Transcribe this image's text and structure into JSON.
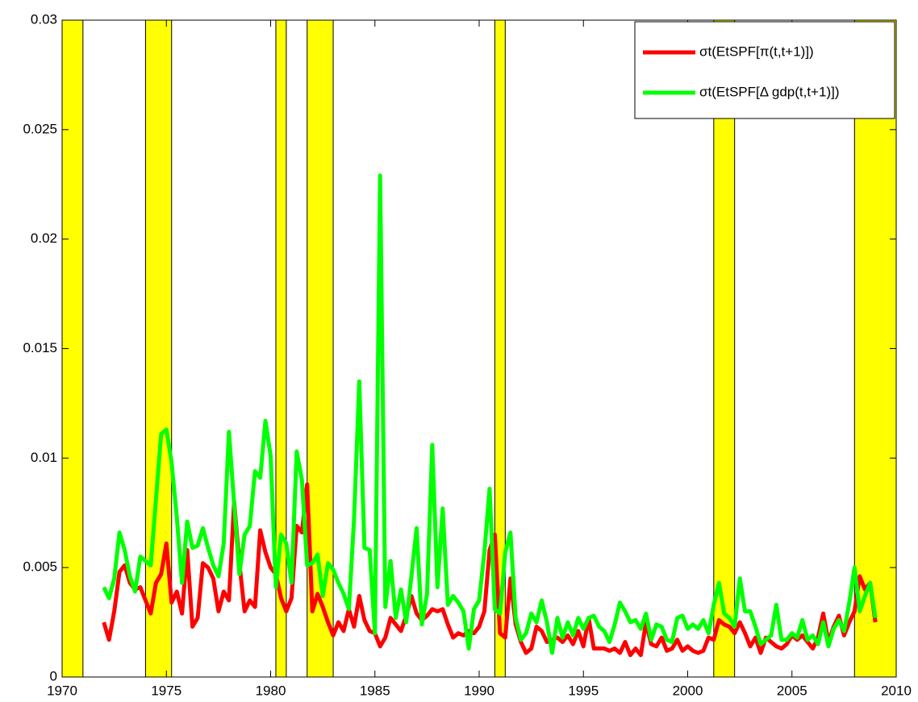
{
  "chart_data": {
    "type": "line",
    "xlim": [
      1970,
      2010
    ],
    "ylim": [
      0,
      0.03
    ],
    "xticks": [
      1970,
      1975,
      1980,
      1985,
      1990,
      1995,
      2000,
      2005,
      2010
    ],
    "yticks": [
      0,
      0.005,
      0.01,
      0.015,
      0.02,
      0.025,
      0.03
    ],
    "grid": false,
    "legend": "upper right",
    "shade_color": "#ffff00",
    "shaded_periods": [
      [
        1970,
        1971
      ],
      [
        1974,
        1975.25
      ],
      [
        1980.25,
        1980.75
      ],
      [
        1981.75,
        1983
      ],
      [
        1990.75,
        1991.25
      ],
      [
        2001.25,
        2002.25
      ],
      [
        2008,
        2010
      ]
    ],
    "x": [
      1972,
      1972.25,
      1972.5,
      1972.75,
      1973,
      1973.25,
      1973.5,
      1973.75,
      1974,
      1974.25,
      1974.5,
      1974.75,
      1975,
      1975.25,
      1975.5,
      1975.75,
      1976,
      1976.25,
      1976.5,
      1976.75,
      1977,
      1977.25,
      1977.5,
      1977.75,
      1978,
      1978.25,
      1978.5,
      1978.75,
      1979,
      1979.25,
      1979.5,
      1979.75,
      1980,
      1980.25,
      1980.5,
      1980.75,
      1981,
      1981.25,
      1981.5,
      1981.75,
      1982,
      1982.25,
      1982.5,
      1982.75,
      1983,
      1983.25,
      1983.5,
      1983.75,
      1984,
      1984.25,
      1984.5,
      1984.75,
      1985,
      1985.25,
      1985.5,
      1985.75,
      1986,
      1986.25,
      1986.5,
      1986.75,
      1987,
      1987.25,
      1987.5,
      1987.75,
      1988,
      1988.25,
      1988.5,
      1988.75,
      1989,
      1989.25,
      1989.5,
      1989.75,
      1990,
      1990.25,
      1990.5,
      1990.75,
      1991,
      1991.25,
      1991.5,
      1991.75,
      1992,
      1992.25,
      1992.5,
      1992.75,
      1993,
      1993.25,
      1993.5,
      1993.75,
      1994,
      1994.25,
      1994.5,
      1994.75,
      1995,
      1995.25,
      1995.5,
      1995.75,
      1996,
      1996.25,
      1996.5,
      1996.75,
      1997,
      1997.25,
      1997.5,
      1997.75,
      1998,
      1998.25,
      1998.5,
      1998.75,
      1999,
      1999.25,
      1999.5,
      1999.75,
      2000,
      2000.25,
      2000.5,
      2000.75,
      2001,
      2001.25,
      2001.5,
      2001.75,
      2002,
      2002.25,
      2002.5,
      2002.75,
      2003,
      2003.25,
      2003.5,
      2003.75,
      2004,
      2004.25,
      2004.5,
      2004.75,
      2005,
      2005.25,
      2005.5,
      2005.75,
      2006,
      2006.25,
      2006.5,
      2006.75,
      2007,
      2007.25,
      2007.5,
      2007.75,
      2008,
      2008.25,
      2008.5,
      2008.75,
      2009
    ],
    "series": [
      {
        "name": "σt(EtSPF[π(t,t+1)])",
        "color": "#ff0000",
        "values": [
          0.0025,
          0.0017,
          0.003,
          0.0048,
          0.0051,
          0.0043,
          0.004,
          0.0041,
          0.0035,
          0.0029,
          0.0043,
          0.0047,
          0.0061,
          0.0034,
          0.0039,
          0.0029,
          0.0058,
          0.0023,
          0.0027,
          0.0052,
          0.005,
          0.0045,
          0.003,
          0.0039,
          0.0035,
          0.008,
          0.0052,
          0.003,
          0.0035,
          0.0032,
          0.0067,
          0.0057,
          0.005,
          0.0047,
          0.0036,
          0.003,
          0.0036,
          0.0069,
          0.0066,
          0.0088,
          0.003,
          0.0038,
          0.0032,
          0.0025,
          0.0019,
          0.0025,
          0.0021,
          0.0031,
          0.0023,
          0.0037,
          0.0026,
          0.0021,
          0.002,
          0.0014,
          0.0018,
          0.0027,
          0.0024,
          0.0021,
          0.0028,
          0.0037,
          0.0029,
          0.0026,
          0.0028,
          0.0031,
          0.003,
          0.0031,
          0.0024,
          0.0018,
          0.002,
          0.0019,
          0.0021,
          0.002,
          0.0023,
          0.003,
          0.0058,
          0.0065,
          0.002,
          0.0018,
          0.0045,
          0.0024,
          0.0016,
          0.0011,
          0.0013,
          0.0023,
          0.0021,
          0.0016,
          0.0017,
          0.0018,
          0.0016,
          0.0019,
          0.0015,
          0.0021,
          0.0014,
          0.0027,
          0.0013,
          0.0013,
          0.0013,
          0.0012,
          0.0013,
          0.0011,
          0.0016,
          0.001,
          0.0013,
          0.001,
          0.0025,
          0.0015,
          0.0014,
          0.0018,
          0.0012,
          0.0013,
          0.0017,
          0.0012,
          0.0014,
          0.0012,
          0.0011,
          0.0012,
          0.0018,
          0.0017,
          0.0026,
          0.0024,
          0.0023,
          0.002,
          0.0025,
          0.002,
          0.0014,
          0.0018,
          0.0011,
          0.0018,
          0.0016,
          0.0014,
          0.0013,
          0.0015,
          0.0019,
          0.0017,
          0.0019,
          0.0016,
          0.0013,
          0.0018,
          0.0029,
          0.0016,
          0.0023,
          0.0028,
          0.0019,
          0.0025,
          0.003,
          0.0046,
          0.004,
          0.0043,
          0.0025
        ]
      },
      {
        "name": "σt(EtSPF[Δ gdp(t,t+1)])",
        "color": "#00ff00",
        "values": [
          0.0041,
          0.0036,
          0.0045,
          0.0066,
          0.0058,
          0.0046,
          0.0039,
          0.0055,
          0.0053,
          0.0051,
          0.0081,
          0.0111,
          0.0113,
          0.0098,
          0.0073,
          0.0043,
          0.0071,
          0.0059,
          0.006,
          0.0068,
          0.0059,
          0.0051,
          0.0046,
          0.0061,
          0.0112,
          0.0079,
          0.0047,
          0.0065,
          0.0069,
          0.0094,
          0.0091,
          0.0117,
          0.0101,
          0.0041,
          0.0065,
          0.0061,
          0.0043,
          0.0103,
          0.009,
          0.0051,
          0.0052,
          0.0056,
          0.0037,
          0.0052,
          0.0049,
          0.0043,
          0.0038,
          0.0031,
          0.0072,
          0.0135,
          0.0059,
          0.0058,
          0.002,
          0.0229,
          0.0032,
          0.0053,
          0.0027,
          0.004,
          0.0025,
          0.0046,
          0.0068,
          0.0024,
          0.0038,
          0.0106,
          0.0041,
          0.0077,
          0.0033,
          0.0037,
          0.0034,
          0.003,
          0.0013,
          0.0031,
          0.0035,
          0.0057,
          0.0086,
          0.0031,
          0.0029,
          0.0057,
          0.0066,
          0.0027,
          0.0017,
          0.002,
          0.0029,
          0.0025,
          0.0035,
          0.0025,
          0.0011,
          0.0027,
          0.0018,
          0.0025,
          0.0019,
          0.0027,
          0.0022,
          0.0027,
          0.0028,
          0.0023,
          0.0021,
          0.0016,
          0.0024,
          0.0034,
          0.003,
          0.0025,
          0.0026,
          0.0022,
          0.0029,
          0.0017,
          0.0024,
          0.0023,
          0.0017,
          0.0016,
          0.0027,
          0.0028,
          0.0022,
          0.0024,
          0.0022,
          0.0026,
          0.002,
          0.0033,
          0.0043,
          0.0029,
          0.0027,
          0.0023,
          0.0045,
          0.003,
          0.003,
          0.0023,
          0.0015,
          0.0017,
          0.0019,
          0.0033,
          0.0017,
          0.0017,
          0.002,
          0.0018,
          0.0026,
          0.0017,
          0.0019,
          0.0015,
          0.0025,
          0.0014,
          0.0022,
          0.0026,
          0.0021,
          0.0034,
          0.005,
          0.003,
          0.0037,
          0.0043,
          0.0027
        ]
      }
    ]
  }
}
